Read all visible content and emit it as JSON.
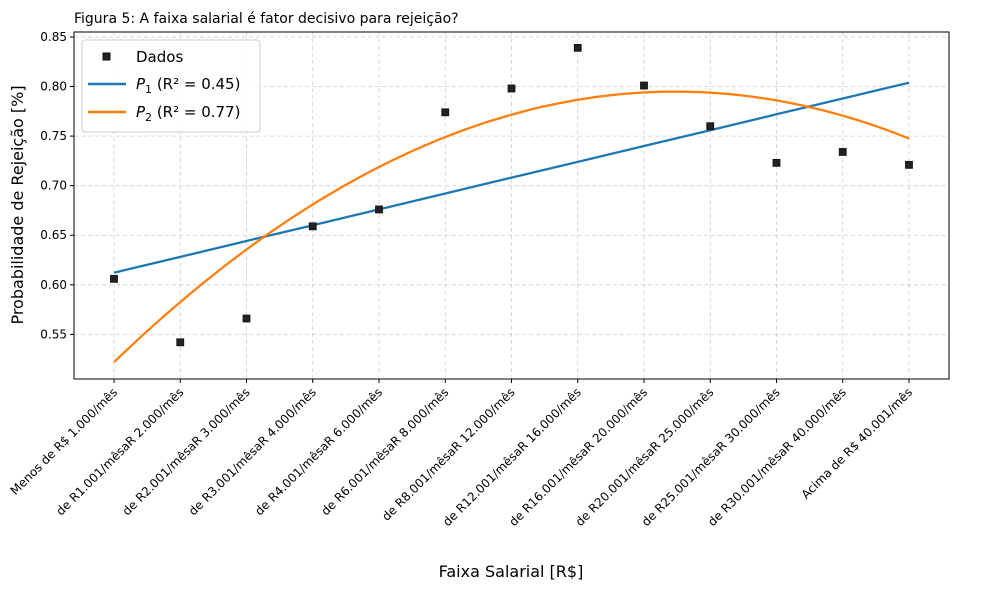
{
  "chart_data": {
    "type": "scatter",
    "title": "Figura 5: A faixa salarial é fator decisivo para rejeição?",
    "xlabel": "Faixa Salarial [R$]",
    "ylabel": "Probabilidade de Rejeição [%]",
    "categories": [
      "Menos de R$ 1.000/mês",
      "de R1.001/mêsaR 2.000/mês",
      "de R2.001/mêsaR 3.000/mês",
      "de R3.001/mêsaR 4.000/mês",
      "de R4.001/mêsaR 6.000/mês",
      "de R6.001/mêsaR 8.000/mês",
      "de R8.001/mêsaR 12.000/mês",
      "de R12.001/mêsaR 16.000/mês",
      "de R16.001/mêsaR 20.000/mês",
      "de R20.001/mêsaR 25.000/mês",
      "de R25.001/mêsaR 30.000/mês",
      "de R30.001/mêsaR 40.000/mês",
      "Acima de R$ 40.001/mês"
    ],
    "ylim": [
      0.505,
      0.855
    ],
    "yticks": [
      0.55,
      0.6,
      0.65,
      0.7,
      0.75,
      0.8,
      0.85
    ],
    "grid": true,
    "legend_position": "upper-left",
    "series": [
      {
        "name": "Dados",
        "kind": "scatter",
        "color": "#222222",
        "values": [
          0.606,
          0.542,
          0.566,
          0.659,
          0.676,
          0.774,
          0.798,
          0.839,
          0.801,
          0.76,
          0.723,
          0.734,
          0.721
        ]
      },
      {
        "name": "P",
        "subscript": "1",
        "r2_label": " (R² = 0.45)",
        "kind": "line",
        "color": "#1f77b4",
        "values": [
          0.6122,
          0.6282,
          0.6442,
          0.6601,
          0.6761,
          0.6921,
          0.7081,
          0.724,
          0.74,
          0.756,
          0.772,
          0.7879,
          0.8039
        ]
      },
      {
        "name": "P",
        "subscript": "2",
        "r2_label": " (R² = 0.77)",
        "kind": "curve",
        "color": "#ff7f0e",
        "values": [
          0.522,
          0.5826,
          0.6356,
          0.681,
          0.7188,
          0.749,
          0.7716,
          0.7866,
          0.794,
          0.7938,
          0.786,
          0.7706,
          0.7476
        ]
      }
    ]
  }
}
